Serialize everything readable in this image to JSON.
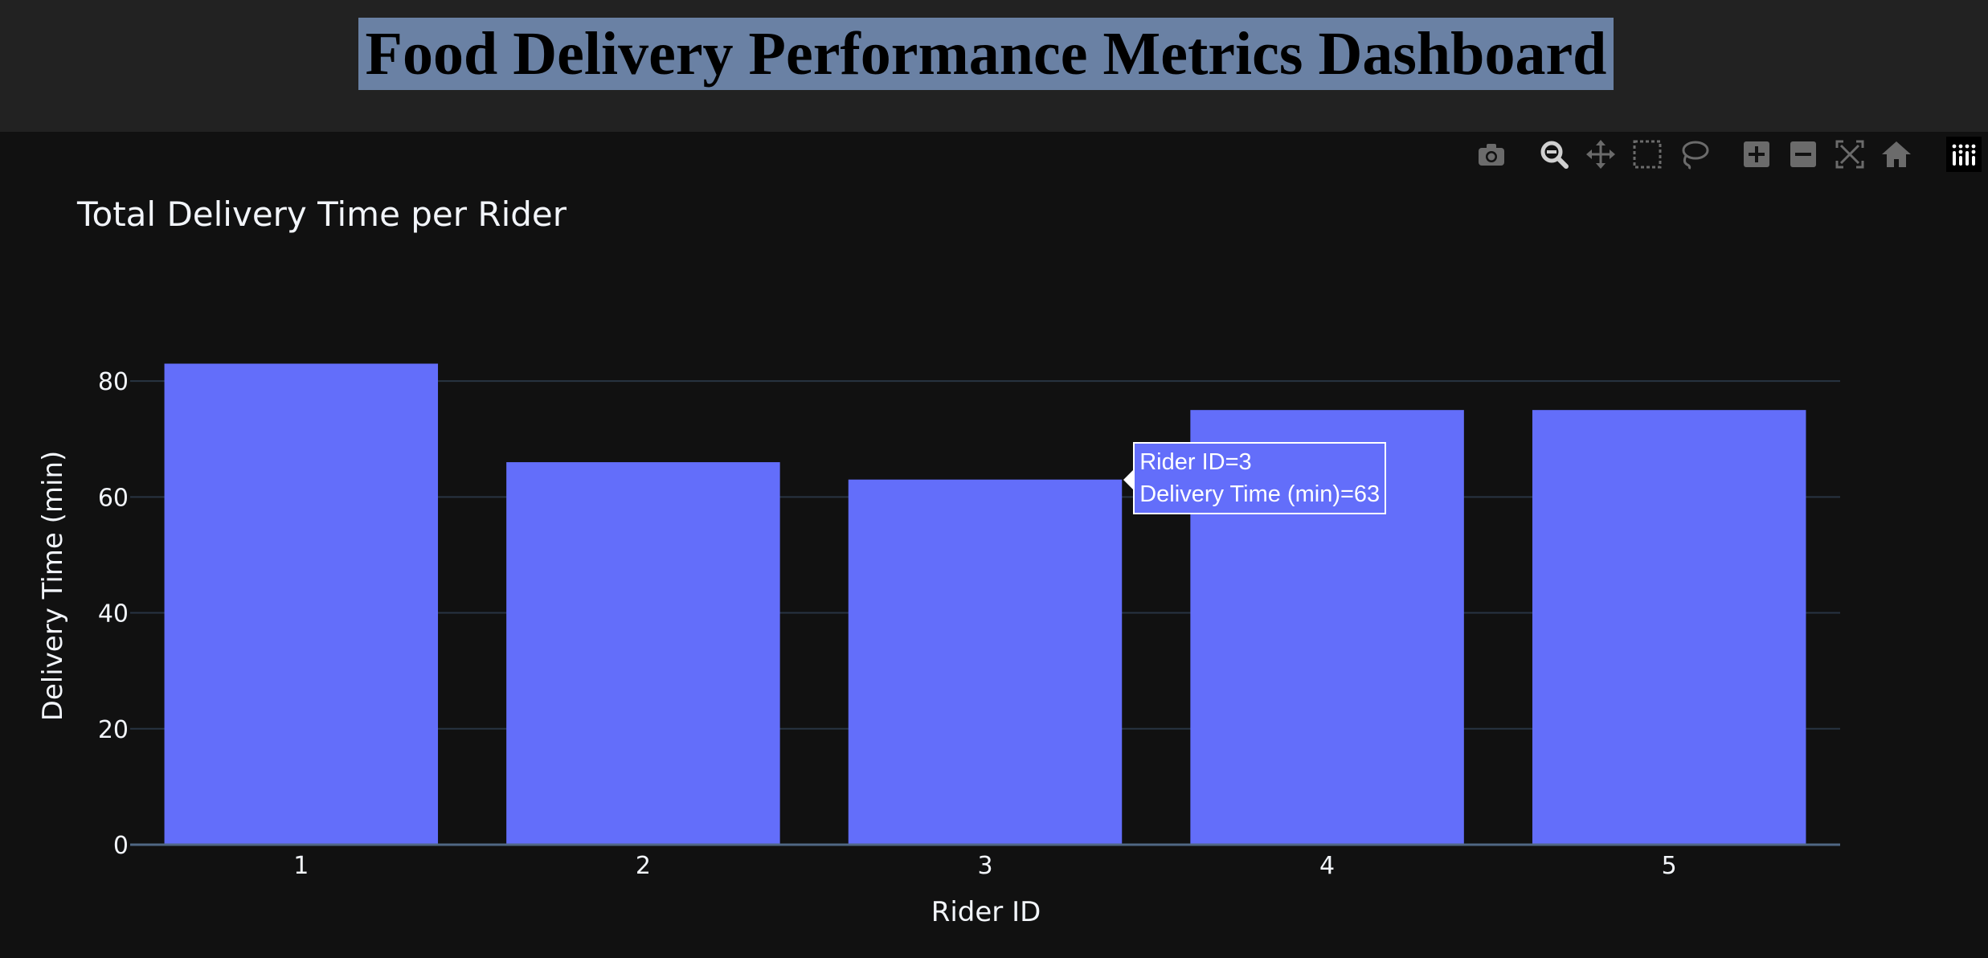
{
  "page": {
    "title": "Food Delivery Performance Metrics Dashboard"
  },
  "modebar": {
    "buttons": [
      {
        "name": "camera-icon",
        "label": "Download plot as a png"
      },
      {
        "name": "zoom-icon",
        "label": "Zoom"
      },
      {
        "name": "pan-icon",
        "label": "Pan"
      },
      {
        "name": "box-select-icon",
        "label": "Box Select"
      },
      {
        "name": "lasso-select-icon",
        "label": "Lasso Select"
      },
      {
        "name": "zoom-in-icon",
        "label": "Zoom in"
      },
      {
        "name": "zoom-out-icon",
        "label": "Zoom out"
      },
      {
        "name": "autoscale-icon",
        "label": "Autoscale"
      },
      {
        "name": "reset-axes-icon",
        "label": "Reset axes"
      },
      {
        "name": "plotly-logo-icon",
        "label": "Produced with Plotly"
      }
    ]
  },
  "colors": {
    "bar": "#636efa",
    "grid": "#283442",
    "background": "#111111",
    "header": "#222222",
    "text": "#f2f5fa",
    "title_highlight": "#6a81a4"
  },
  "chart_data": {
    "type": "bar",
    "title": "Total Delivery Time per Rider",
    "xlabel": "Rider ID",
    "ylabel": "Delivery Time (min)",
    "categories": [
      "1",
      "2",
      "3",
      "4",
      "5"
    ],
    "values": [
      83,
      66,
      63,
      75,
      75
    ],
    "ylim": [
      0,
      90
    ],
    "yticks": [
      0,
      20,
      40,
      60,
      80
    ],
    "grid": true,
    "tooltip": {
      "category": "3",
      "line1": "Rider ID=3",
      "line2": "Delivery Time (min)=63"
    }
  }
}
